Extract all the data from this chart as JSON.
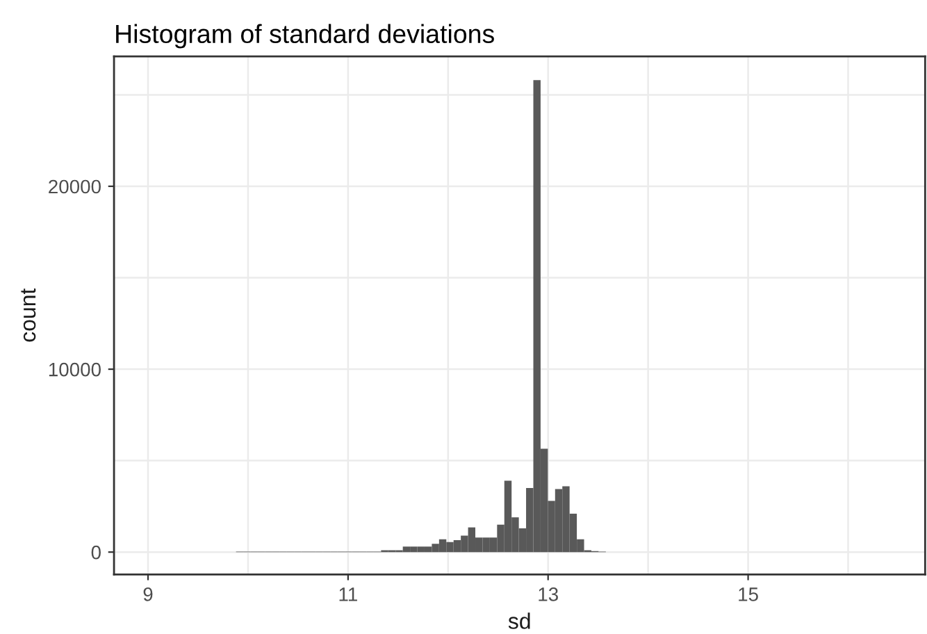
{
  "chart_data": {
    "type": "histogram",
    "title": "Histogram of standard deviations",
    "xlabel": "sd",
    "ylabel": "count",
    "color": "#595959",
    "bins": [
      9.88,
      9.9525,
      10.025,
      10.0975,
      10.17,
      10.2425,
      10.315,
      10.3875,
      10.46,
      10.5325,
      10.605,
      10.6775,
      10.75,
      10.8225,
      10.895,
      10.9675,
      11.04,
      11.1125,
      11.185,
      11.2575,
      11.33,
      11.4025,
      11.475,
      11.5475,
      11.62,
      11.6925,
      11.765,
      11.8375,
      11.91,
      11.9825,
      12.055,
      12.1275,
      12.2,
      12.2725,
      12.345,
      12.4175,
      12.49,
      12.5625,
      12.635,
      12.7075,
      12.78,
      12.8525,
      12.925,
      12.9975,
      13.07,
      13.1425,
      13.215,
      13.2875,
      13.36,
      13.4325,
      13.505,
      13.5775
    ],
    "values": [
      30,
      30,
      30,
      30,
      30,
      30,
      30,
      30,
      30,
      30,
      30,
      30,
      30,
      30,
      30,
      30,
      30,
      30,
      30,
      30,
      100,
      100,
      100,
      300,
      300,
      300,
      300,
      450,
      700,
      550,
      650,
      900,
      1350,
      800,
      800,
      800,
      1500,
      3900,
      1900,
      1300,
      3500,
      25800,
      5650,
      2800,
      3450,
      3600,
      2100,
      700,
      100,
      50,
      30
    ],
    "xlim": [
      8.66,
      16.77
    ],
    "ylim": [
      -1220,
      27100
    ],
    "xticks": [
      9,
      {
        "value": 10,
        "label": null
      },
      11,
      {
        "value": 12,
        "label": null
      },
      13,
      {
        "value": 14,
        "label": null
      },
      15,
      {
        "value": 16,
        "label": null
      }
    ],
    "yticks": [
      0,
      {
        "value": 5000,
        "label": null
      },
      10000,
      {
        "value": 15000,
        "label": null
      },
      20000,
      {
        "value": 25000,
        "label": null
      }
    ],
    "grid": true
  }
}
